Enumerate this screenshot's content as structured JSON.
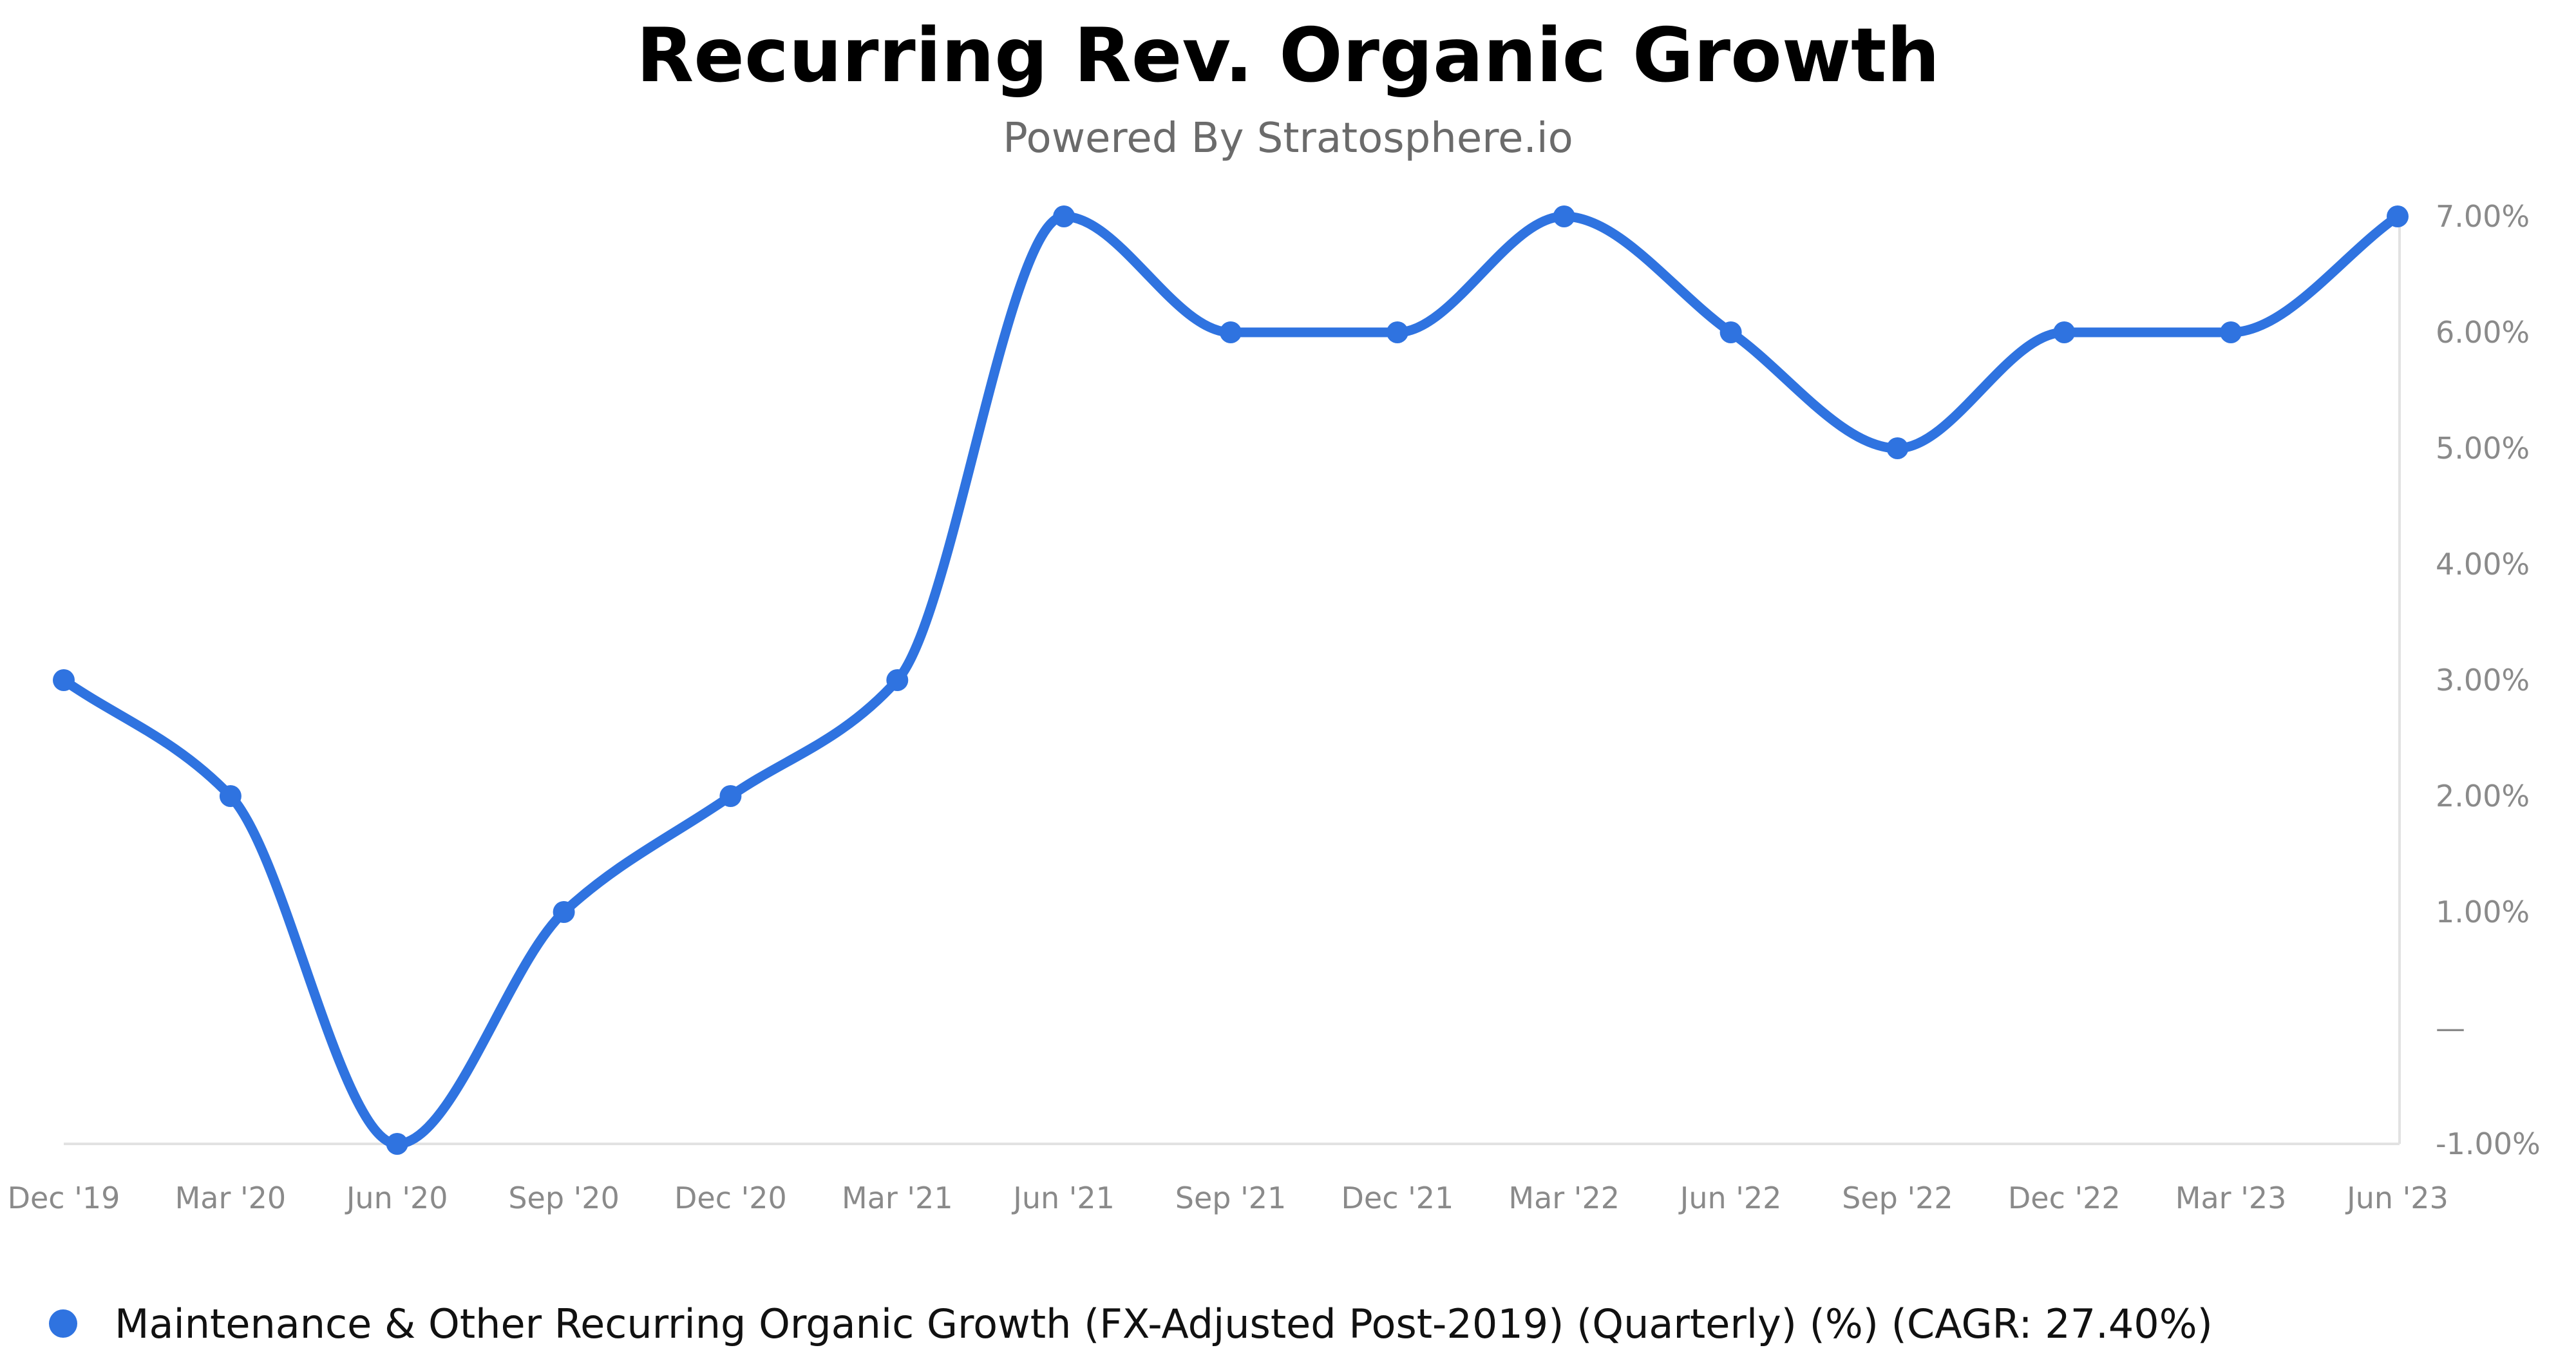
{
  "chart_data": {
    "type": "line",
    "title": "Recurring Rev. Organic Growth",
    "subtitle": "Powered By Stratosphere.io",
    "categories": [
      "Dec '19",
      "Mar '20",
      "Jun '20",
      "Sep '20",
      "Dec '20",
      "Mar '21",
      "Jun '21",
      "Sep '21",
      "Dec '21",
      "Mar '22",
      "Jun '22",
      "Sep '22",
      "Dec '22",
      "Mar '23",
      "Jun '23"
    ],
    "series": [
      {
        "name": "Maintenance & Other Recurring Organic Growth (FX-Adjusted Post-2019) (Quarterly) (%) (CAGR: 27.40%)",
        "values": [
          3,
          2,
          -1,
          1,
          2,
          3,
          7,
          6,
          6,
          7,
          6,
          5,
          6,
          6,
          7
        ],
        "color": "#2f73e0"
      }
    ],
    "y_ticks": [
      {
        "value": 7,
        "label": "7.00%"
      },
      {
        "value": 6,
        "label": "6.00%"
      },
      {
        "value": 5,
        "label": "5.00%"
      },
      {
        "value": 4,
        "label": "4.00%"
      },
      {
        "value": 3,
        "label": "3.00%"
      },
      {
        "value": 2,
        "label": "2.00%"
      },
      {
        "value": 1,
        "label": "1.00%"
      },
      {
        "value": 0,
        "label": "—"
      },
      {
        "value": -1,
        "label": "-1.00%"
      }
    ],
    "ylim": [
      -1,
      7
    ],
    "yaxis_position": "right",
    "xlabel": "",
    "ylabel": "",
    "grid": false,
    "legend_position": "bottom-left"
  }
}
